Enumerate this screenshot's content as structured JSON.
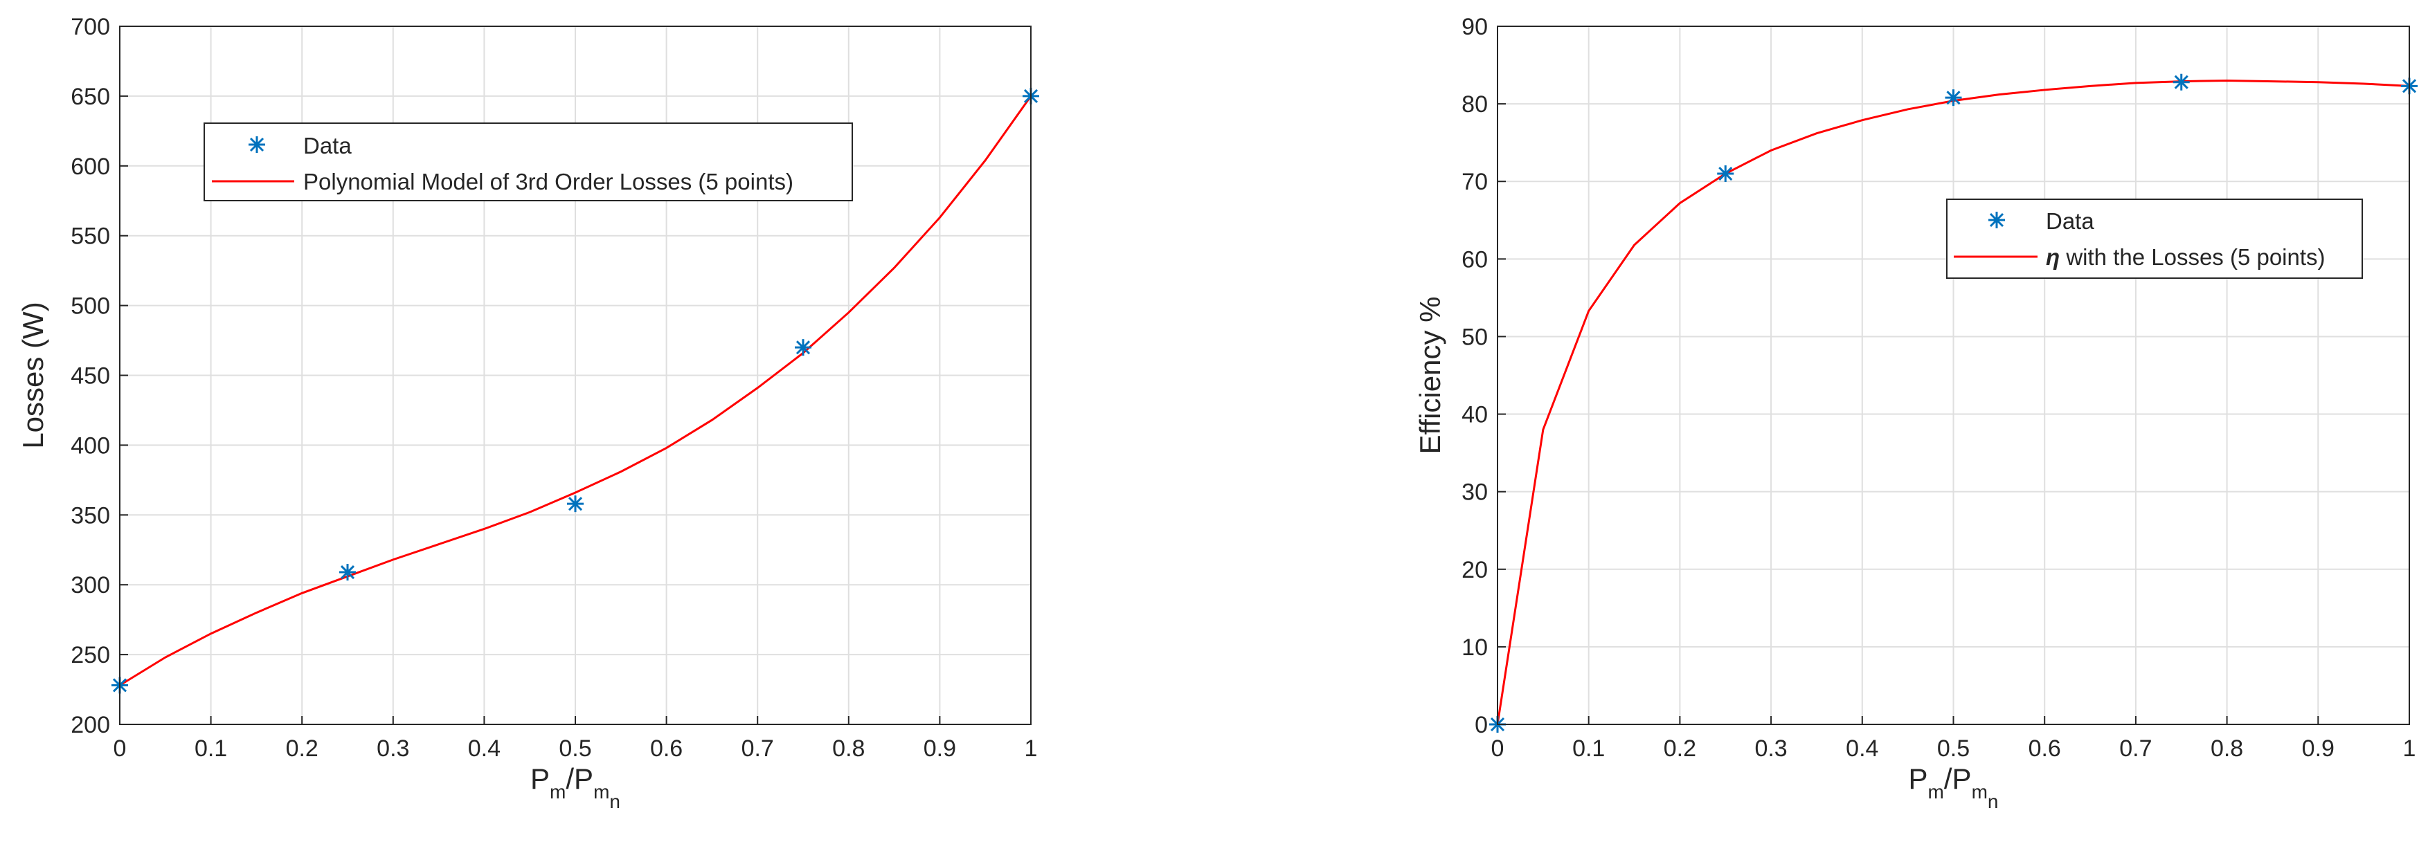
{
  "chart_data": [
    {
      "type": "line",
      "xlabel": "P_m/P_m_n",
      "xlabel_parts": {
        "base1": "P",
        "sub1": "m",
        "slash": "/",
        "base2": "P",
        "sub2a": "m",
        "sub2b": "n"
      },
      "ylabel": "Losses (W)",
      "xlim": [
        0,
        1
      ],
      "ylim": [
        200,
        700
      ],
      "xticks": [
        "0",
        "0.1",
        "0.2",
        "0.3",
        "0.4",
        "0.5",
        "0.6",
        "0.7",
        "0.8",
        "0.9",
        "1"
      ],
      "yticks": [
        "200",
        "250",
        "300",
        "350",
        "400",
        "450",
        "500",
        "550",
        "600",
        "650",
        "700"
      ],
      "grid": true,
      "legend_position": "top-left",
      "series": [
        {
          "name": "Data",
          "kind": "markers",
          "marker": "asterisk",
          "color": "#0072BD",
          "x": [
            0,
            0.25,
            0.5,
            0.75,
            1
          ],
          "y": [
            228,
            309,
            358,
            470,
            650
          ]
        },
        {
          "name": "Polynomial Model of 3rd Order Losses (5 points)",
          "kind": "line",
          "color": "#FF0000",
          "x": [
            0,
            0.05,
            0.1,
            0.15,
            0.2,
            0.25,
            0.3,
            0.35,
            0.4,
            0.45,
            0.5,
            0.55,
            0.6,
            0.65,
            0.7,
            0.75,
            0.8,
            0.85,
            0.9,
            0.95,
            1
          ],
          "y": [
            228,
            248,
            265,
            280,
            294,
            306,
            318,
            329,
            340,
            352,
            366,
            381,
            398,
            418,
            441,
            466,
            495,
            527,
            563,
            604,
            650
          ]
        }
      ]
    },
    {
      "type": "line",
      "xlabel": "P_m/P_m_n",
      "xlabel_parts": {
        "base1": "P",
        "sub1": "m",
        "slash": "/",
        "base2": "P",
        "sub2a": "m",
        "sub2b": "n"
      },
      "ylabel": "Efficiency %",
      "xlim": [
        0,
        1
      ],
      "ylim": [
        0,
        90
      ],
      "xticks": [
        "0",
        "0.1",
        "0.2",
        "0.3",
        "0.4",
        "0.5",
        "0.6",
        "0.7",
        "0.8",
        "0.9",
        "1"
      ],
      "yticks": [
        "0",
        "10",
        "20",
        "30",
        "40",
        "50",
        "60",
        "70",
        "80",
        "90"
      ],
      "grid": true,
      "legend_position": "right",
      "series": [
        {
          "name": "Data",
          "kind": "markers",
          "marker": "asterisk",
          "color": "#0072BD",
          "x": [
            0,
            0.25,
            0.5,
            0.75,
            1
          ],
          "y": [
            0,
            71,
            80.8,
            82.8,
            82.3
          ]
        },
        {
          "name": "η with the Losses (5 points)",
          "name_parts": {
            "symbol": "η",
            "rest": " with the Losses (5 points)"
          },
          "kind": "line",
          "color": "#FF0000",
          "x": [
            0,
            0.05,
            0.1,
            0.15,
            0.2,
            0.25,
            0.3,
            0.35,
            0.4,
            0.45,
            0.5,
            0.55,
            0.6,
            0.65,
            0.7,
            0.75,
            0.8,
            0.85,
            0.9,
            0.95,
            1
          ],
          "y": [
            0,
            38,
            53.3,
            61.8,
            67.2,
            71.0,
            74.0,
            76.2,
            77.9,
            79.3,
            80.4,
            81.2,
            81.8,
            82.3,
            82.7,
            82.9,
            83.0,
            82.9,
            82.8,
            82.6,
            82.3
          ]
        }
      ]
    }
  ]
}
